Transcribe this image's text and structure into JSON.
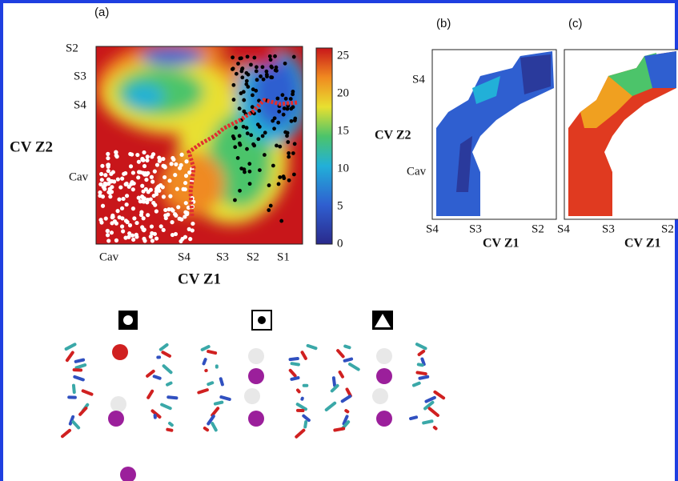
{
  "panel_a": {
    "label": "(a)",
    "y_axis_title": "CV Z2",
    "x_axis_title": "CV Z1",
    "y_labels": [
      "S2",
      "S3",
      "S4",
      "Cav"
    ],
    "x_labels": [
      "Cav",
      "S4",
      "S3",
      "S2",
      "S1"
    ],
    "colorbar_ticks": [
      0,
      5,
      10,
      15,
      20,
      25
    ]
  },
  "panel_b": {
    "label": "(b)",
    "y_axis_title": "CV Z2",
    "x_axis_title": "CV Z1",
    "y_labels": [
      "S4",
      "Cav"
    ],
    "x_labels": [
      "S4",
      "S3",
      "S2"
    ]
  },
  "panel_c": {
    "label": "(c)",
    "x_axis_title": "CV Z1",
    "x_labels": [
      "S4",
      "S3",
      "S2"
    ]
  }
}
